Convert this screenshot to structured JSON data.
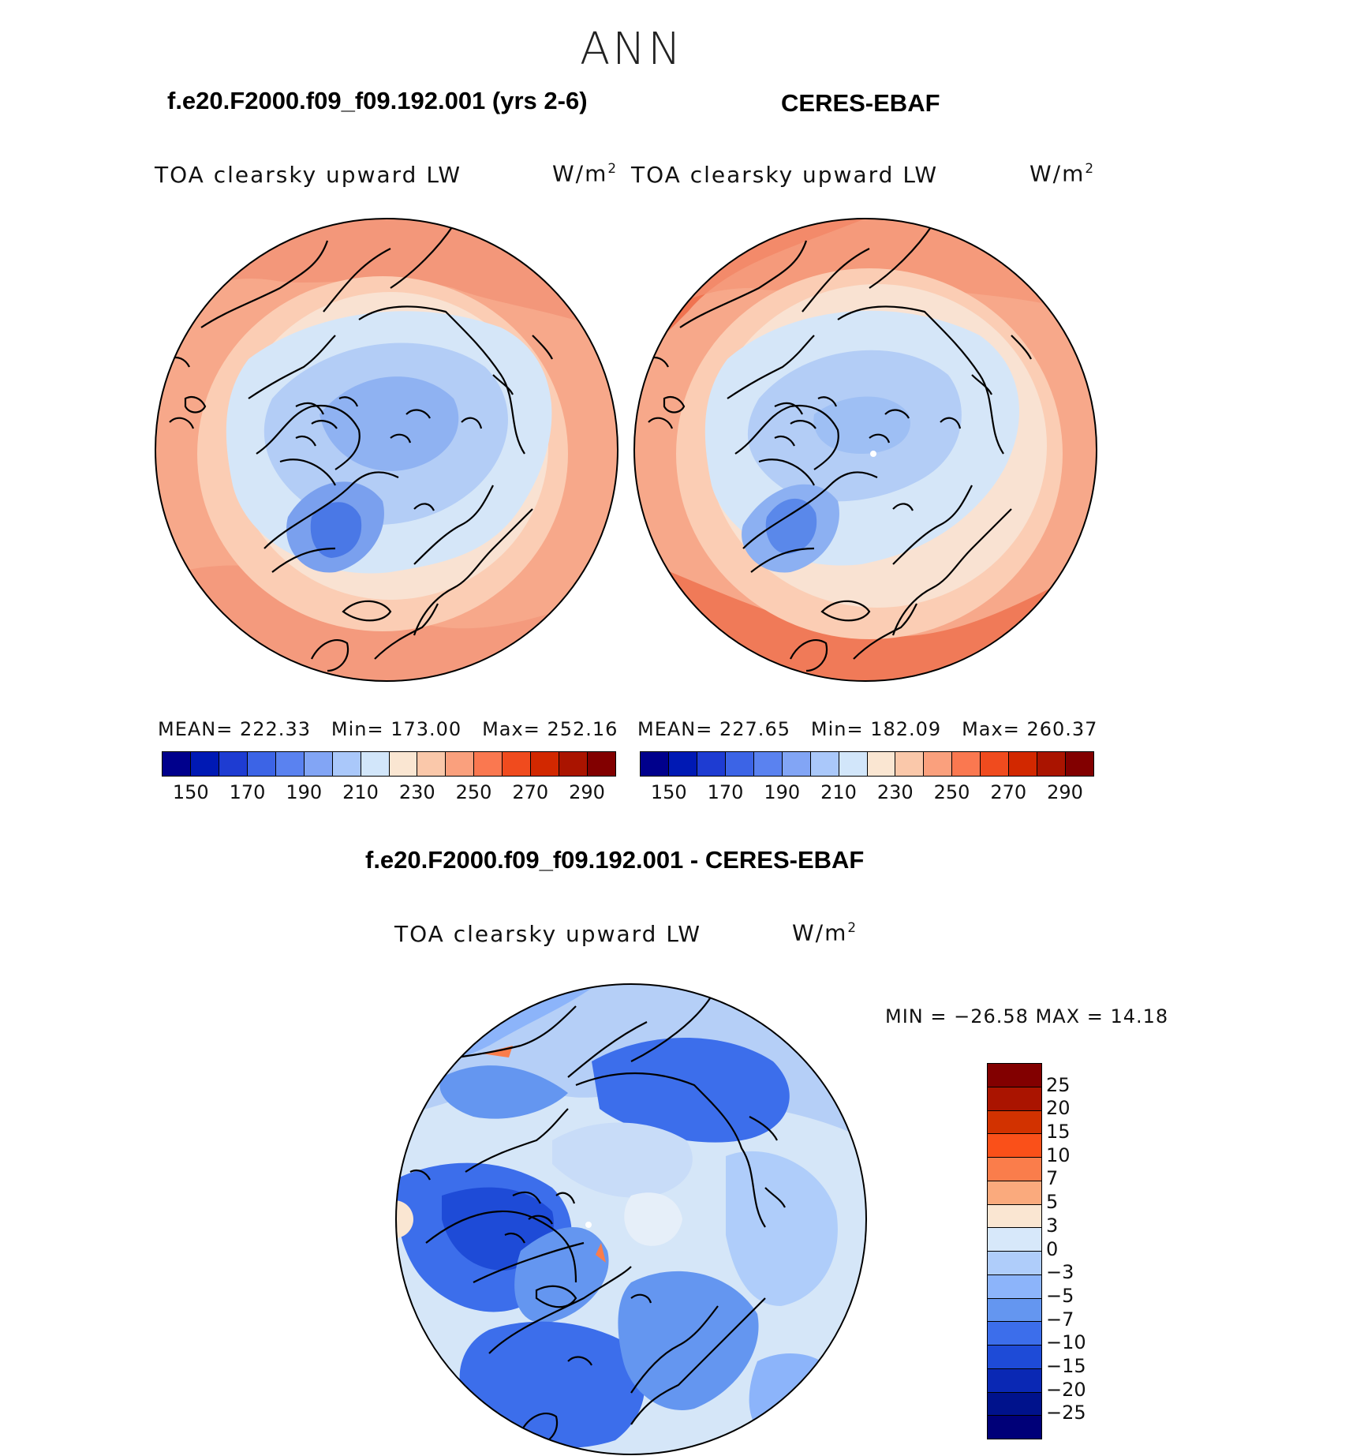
{
  "figure": {
    "title": "ANN",
    "left_panel_heading": "f.e20.F2000.f09_f09.192.001 (yrs 2-6)",
    "right_panel_heading": "CERES-EBAF",
    "diff_heading": "f.e20.F2000.f09_f09.192.001 - CERES-EBAF"
  },
  "panels": {
    "left": {
      "variable": "TOA clearsky upward LW",
      "units": "W/m",
      "units_exp": "2",
      "mean_label": "MEAN=",
      "mean_value": "222.33",
      "min_label": "Min=",
      "min_value": "173.00",
      "max_label": "Max=",
      "max_value": "252.16"
    },
    "right": {
      "variable": "TOA clearsky upward LW",
      "units": "W/m",
      "units_exp": "2",
      "mean_label": "MEAN=",
      "mean_value": "227.65",
      "min_label": "Min=",
      "min_value": "182.09",
      "max_label": "Max=",
      "max_value": "260.37"
    },
    "diff": {
      "variable": "TOA clearsky upward LW",
      "units": "W/m",
      "units_exp": "2",
      "minmax_text": "MIN = −26.58 MAX =  14.18"
    }
  },
  "colorbars": {
    "abs_ticks": [
      "150",
      "170",
      "190",
      "210",
      "230",
      "250",
      "270",
      "290"
    ],
    "abs_colors": [
      "#00008c",
      "#0019b4",
      "#1e3cd2",
      "#3c64e6",
      "#5a82f0",
      "#82a5f5",
      "#aac8fa",
      "#d2e6fa",
      "#fae6d2",
      "#fac8aa",
      "#faa07d",
      "#fa7850",
      "#f04b1e",
      "#d22800",
      "#aa1400",
      "#820000"
    ],
    "diff_ticks": [
      "25",
      "20",
      "15",
      "10",
      "7",
      "5",
      "3",
      "0",
      "−3",
      "−5",
      "−7",
      "−10",
      "−15",
      "−20",
      "−25"
    ],
    "diff_colors": [
      "#820000",
      "#aa1400",
      "#d23200",
      "#fa5019",
      "#fa7d4b",
      "#faaa7d",
      "#fae6d2",
      "#d7e8fa",
      "#afcdfa",
      "#8cb4fa",
      "#6496f0",
      "#3c6eeb",
      "#1e4bd7",
      "#0a28b4",
      "#00128c",
      "#000078"
    ]
  }
}
